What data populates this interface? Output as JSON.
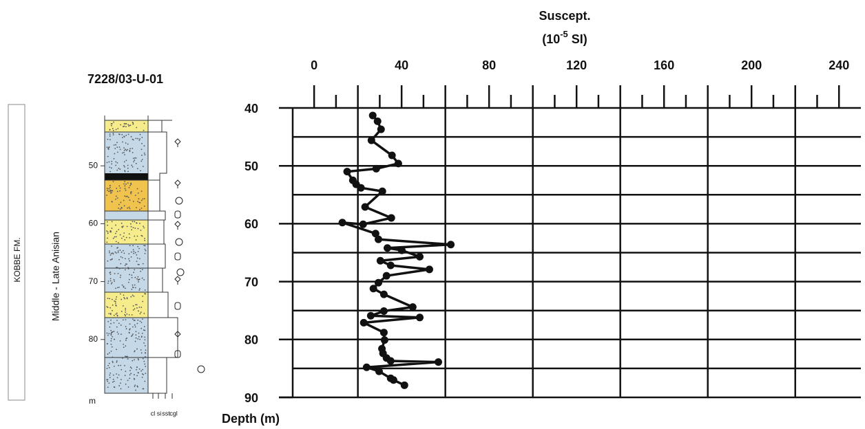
{
  "chart_data": {
    "type": "line",
    "x_label": "Suscept.",
    "x_unit": {
      "base": "(10",
      "exp": "-5",
      "rest": " SI)"
    },
    "y_label": "Depth (m)",
    "xlim": [
      -9.8,
      250
    ],
    "ylim": [
      40,
      90
    ],
    "y_inverted": true,
    "x_axis_position": "top",
    "xticks": [
      0,
      40,
      80,
      120,
      160,
      200,
      240
    ],
    "xminorticks": [
      10,
      30,
      50,
      70,
      90,
      110,
      130,
      150,
      170,
      190,
      210,
      230
    ],
    "xgrid": [
      20,
      60,
      100,
      140,
      180,
      220
    ],
    "yticks": [
      40,
      50,
      60,
      70,
      80,
      90
    ],
    "ygrid": [
      45,
      50,
      55,
      60,
      65,
      70,
      75,
      80,
      85
    ],
    "grid": true,
    "series": [
      {
        "color": "#111111",
        "x": [
          26.8,
          29,
          30.6,
          26.2,
          35.6,
          38.5,
          28.4,
          15.1,
          17.7,
          19.2,
          21.4,
          31.2,
          23.3,
          35.3,
          22.4,
          12.9,
          28.1,
          29.4,
          62.5,
          33.5,
          40.1,
          48.3,
          30.3,
          35.0,
          52.7,
          33.1,
          29.4,
          27.1,
          31.9,
          45.1,
          31.9,
          25.9,
          48.3,
          22.7,
          31.9,
          32.2,
          31.0,
          31.5,
          33.1,
          35.0,
          56.8,
          24.0,
          29.7,
          35.0,
          36.3,
          41.3
        ],
        "values": [
          41.3,
          42.3,
          43.7,
          45.6,
          48.2,
          49.6,
          50.5,
          51.0,
          52.5,
          53.2,
          53.8,
          54.4,
          57.1,
          59.0,
          60.1,
          59.8,
          61.7,
          62.7,
          63.6,
          64.2,
          64.6,
          65.7,
          66.4,
          67.2,
          67.9,
          69.0,
          70.2,
          71.2,
          72.2,
          74.4,
          75.1,
          75.9,
          76.2,
          77.1,
          78.8,
          80.1,
          81.6,
          82.4,
          83.2,
          83.7,
          83.9,
          84.8,
          85.5,
          86.7,
          87.0,
          87.9
        ]
      }
    ]
  },
  "log": {
    "title": "7228/03-U-01",
    "formation": "KOBBE FM.",
    "age": "Middle - Late Anisian",
    "depth_ticks": [
      50,
      60,
      70,
      80
    ],
    "unit": "m",
    "grain_sizes": [
      "cl",
      "si",
      "sst",
      "cgl"
    ]
  }
}
